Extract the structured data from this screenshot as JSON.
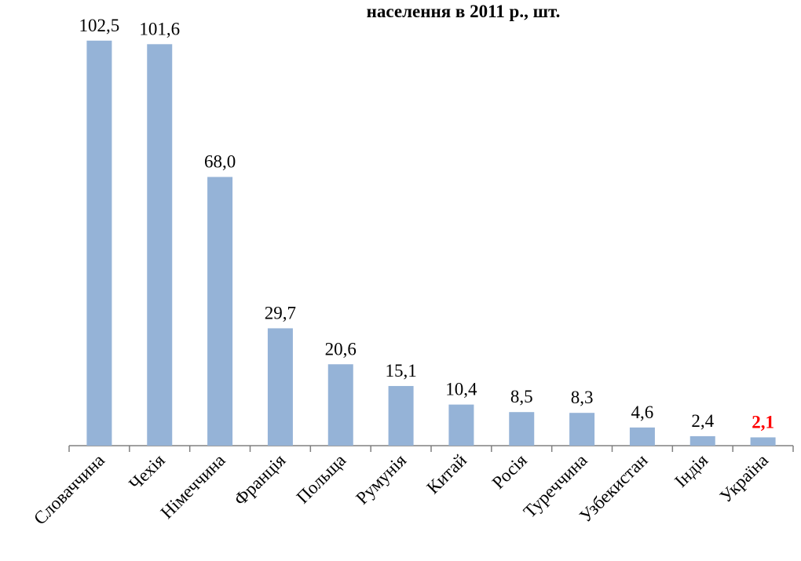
{
  "chart_data": {
    "type": "bar",
    "title": "населення в 2011 р., шт.",
    "categories": [
      "Словаччина",
      "Чехія",
      "Німеччина",
      "Франція",
      "Польща",
      "Румунія",
      "Китай",
      "Росія",
      "Туреччина",
      "Узбекистан",
      "Індія",
      "Україна"
    ],
    "values": [
      102.5,
      101.6,
      68.0,
      29.7,
      20.6,
      15.1,
      10.4,
      8.5,
      8.3,
      4.6,
      2.4,
      2.1
    ],
    "value_labels": [
      "102,5",
      "101,6",
      "68,0",
      "29,7",
      "20,6",
      "15,1",
      "10,4",
      "8,5",
      "8,3",
      "4,6",
      "2,4",
      "2,1"
    ],
    "value_label_colors": [
      "#000000",
      "#000000",
      "#000000",
      "#000000",
      "#000000",
      "#000000",
      "#000000",
      "#000000",
      "#000000",
      "#000000",
      "#000000",
      "#ff0000"
    ],
    "color": "#95b3d7",
    "ylim": [
      0,
      110
    ]
  }
}
